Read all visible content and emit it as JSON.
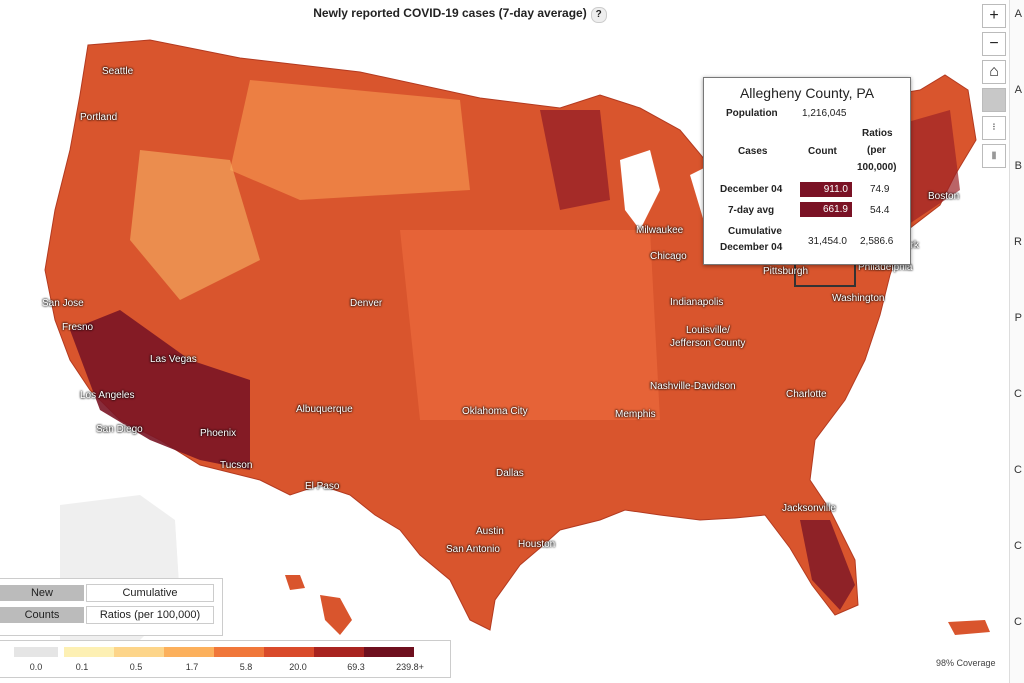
{
  "title": "Newly reported COVID-19 cases (7-day average)",
  "help_glyph": "?",
  "toolbar": {
    "zoom_in": "+",
    "zoom_out": "−",
    "home": "⌂"
  },
  "right_strip": [
    "A",
    "A",
    "B",
    "R",
    "P",
    "C",
    "C",
    "C",
    "C"
  ],
  "cities": [
    {
      "name": "Seattle"
    },
    {
      "name": "Portland"
    },
    {
      "name": "San Jose"
    },
    {
      "name": "Fresno"
    },
    {
      "name": "Las Vegas"
    },
    {
      "name": "Los Angeles"
    },
    {
      "name": "San Diego"
    },
    {
      "name": "Phoenix"
    },
    {
      "name": "Tucson"
    },
    {
      "name": "Albuquerque"
    },
    {
      "name": "El Paso"
    },
    {
      "name": "Denver"
    },
    {
      "name": "Oklahoma City"
    },
    {
      "name": "Dallas"
    },
    {
      "name": "Austin"
    },
    {
      "name": "San Antonio"
    },
    {
      "name": "Houston"
    },
    {
      "name": "Memphis"
    },
    {
      "name": "Nashville-Davidson"
    },
    {
      "name": "Louisville/"
    },
    {
      "name": "Jefferson County"
    },
    {
      "name": "Indianapolis"
    },
    {
      "name": "Chicago"
    },
    {
      "name": "Milwaukee"
    },
    {
      "name": "Pittsburgh"
    },
    {
      "name": "Philadelphia"
    },
    {
      "name": "Washington"
    },
    {
      "name": "Charlotte"
    },
    {
      "name": "Jacksonville"
    },
    {
      "name": "Boston"
    },
    {
      "name": "ork"
    }
  ],
  "tooltip": {
    "county": "Allegheny County, PA",
    "population_label": "Population",
    "population_value": "1,216,045",
    "ratios_header": "Ratios",
    "per_header": "(per",
    "per100k_header": "100,000)",
    "cases_header": "Cases",
    "count_header": "Count",
    "rows": [
      {
        "label": "December 04",
        "count": "911.0",
        "ratio": "74.9"
      },
      {
        "label": "7-day avg",
        "count": "661.9",
        "ratio": "54.4"
      }
    ],
    "cumulative_label_1": "Cumulative",
    "cumulative_label_2": "December 04",
    "cumulative_count": "31,454.0",
    "cumulative_ratio": "2,586.6"
  },
  "toggles": {
    "new": "New",
    "cumulative": "Cumulative",
    "counts": "Counts",
    "ratios": "Ratios (per 100,000)"
  },
  "legend": {
    "ticks": [
      "0.0",
      "0.1",
      "0.5",
      "1.7",
      "5.8",
      "20.0",
      "69.3",
      "239.8+"
    ],
    "colors": [
      "#e5e5e5",
      "#fdf0b4",
      "#fdd58a",
      "#fcb05c",
      "#f0773a",
      "#d94a2a",
      "#a8231f",
      "#6e0f1e"
    ]
  },
  "coverage": "98% Coverage"
}
